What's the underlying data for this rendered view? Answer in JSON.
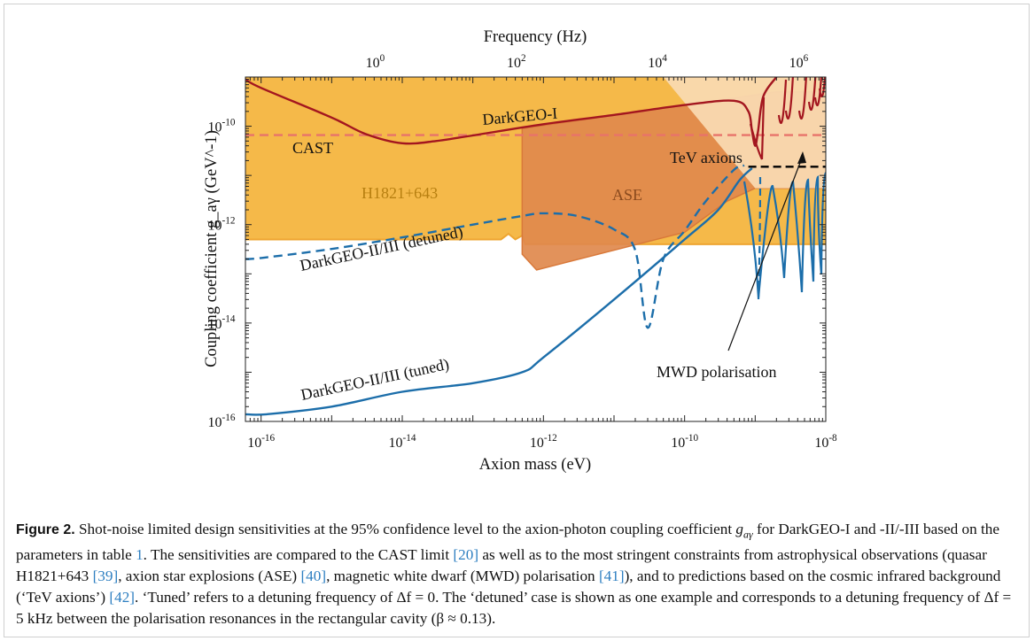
{
  "chart_data": {
    "type": "line",
    "x_axis": {
      "label": "Axion mass (eV)",
      "scale": "log",
      "range": [
        6e-17,
        1e-08
      ],
      "ticks": [
        "10^-16",
        "10^-14",
        "10^-12",
        "10^-10",
        "10^-8"
      ]
    },
    "x2_axis": {
      "label": "Frequency (Hz)",
      "scale": "log",
      "ticks": [
        "10^0",
        "10^2",
        "10^4",
        "10^6"
      ]
    },
    "y_axis": {
      "label": "Coupling coefficient g_aγ (GeV^-1)",
      "scale": "log",
      "range": [
        1e-16,
        1e-09
      ],
      "ticks": [
        "10^-16",
        "10^-14",
        "10^-12",
        "10^-10"
      ]
    },
    "grid": false,
    "regions": [
      {
        "name": "H1821+643",
        "color": "#f4b53f",
        "label": "H1821+643",
        "lower_boundary": [
          [
            6e-17,
            5e-13
          ],
          [
            2.5e-13,
            5e-13
          ],
          [
            3.2e-13,
            6.5e-13
          ],
          [
            4e-13,
            5e-13
          ],
          [
            5e-13,
            6e-13
          ],
          [
            5.5e-13,
            4e-13
          ],
          [
            1e-08,
            4e-13
          ]
        ],
        "upper": 1e-09
      },
      {
        "name": "ASE",
        "color": "#e0894d",
        "label": "ASE",
        "polygon": [
          [
            5e-13,
            2.5e-13
          ],
          [
            8e-13,
            1.2e-13
          ],
          [
            1e-10,
            7e-13
          ],
          [
            4e-10,
            3e-12
          ],
          [
            1e-09,
            5.5e-12
          ],
          [
            1e-08,
            5.5e-12
          ],
          [
            1e-08,
            5e-10
          ],
          [
            2e-09,
            5e-10
          ],
          [
            5e-13,
            9e-11
          ]
        ]
      },
      {
        "name": "MWD polarisation",
        "color": "#f9d9b0",
        "label": "MWD polarisation",
        "polygon": [
          [
            5e-11,
            1e-09
          ],
          [
            1e-08,
            1e-09
          ],
          [
            1e-08,
            5.5e-12
          ],
          [
            1e-09,
            5.5e-12
          ]
        ]
      }
    ],
    "series": [
      {
        "name": "CAST",
        "color": "#e8736a",
        "style": "dashed",
        "x": [
          6e-17,
          1e-08
        ],
        "y": [
          6.6e-11,
          6.6e-11
        ]
      },
      {
        "name": "TeV axions",
        "color": "#000000",
        "style": "dashed",
        "x": [
          8e-10,
          1e-08
        ],
        "y": [
          1.5e-11,
          1.5e-11
        ]
      },
      {
        "name": "DarkGEO-I",
        "color": "#a3161f",
        "style": "solid",
        "x": [
          6e-17,
          1e-16,
          1e-15,
          3e-15,
          1e-14,
          3e-14,
          1e-13,
          1e-12,
          1e-11,
          1e-10,
          5e-10,
          8e-10,
          9e-10,
          1e-09,
          1.1e-09,
          1.3e-09,
          2e-09
        ],
        "y": [
          9e-10,
          6e-10,
          1.5e-10,
          7e-11,
          4.5e-11,
          5e-11,
          6.5e-11,
          1.1e-10,
          1.7e-10,
          2.7e-10,
          3.3e-10,
          2e-10,
          8e-11,
          4e-11,
          8e-11,
          4e-10,
          1e-09
        ]
      },
      {
        "name": "DarkGEO-II/III (detuned)",
        "color": "#1c6eaa",
        "style": "dashed",
        "x": [
          6e-17,
          1e-16,
          1e-15,
          1e-14,
          1e-13,
          5e-13,
          1e-12,
          3e-12,
          1e-11,
          2e-11,
          3e-11,
          5e-11,
          1e-10,
          2e-10,
          5e-10,
          7e-10
        ],
        "y": [
          2e-13,
          2.1e-13,
          3.2e-13,
          5.5e-13,
          1e-12,
          1.5e-12,
          1.7e-12,
          1.5e-12,
          8e-13,
          3e-13,
          8e-15,
          2e-13,
          7.5e-13,
          3e-12,
          1.3e-11,
          1.6e-11
        ]
      },
      {
        "name": "DarkGEO-II/III (tuned)",
        "color": "#1c6eaa",
        "style": "solid",
        "x": [
          6e-17,
          1.2e-16,
          1e-15,
          1e-14,
          1e-13,
          5e-13,
          1e-12,
          1e-11,
          1e-10,
          3e-10,
          6e-10,
          9e-10
        ],
        "y": [
          1.4e-16,
          1.4e-16,
          2e-16,
          4e-16,
          6e-16,
          1e-15,
          2e-15,
          3e-14,
          5e-13,
          2e-12,
          8e-12,
          1.4e-11
        ]
      }
    ],
    "annotations": [
      "DarkGEO-I",
      "CAST",
      "H1821+643",
      "ASE",
      "TeV axions",
      "DarkGEO-II/III (detuned)",
      "DarkGEO-II/III (tuned)",
      "MWD polarisation"
    ]
  },
  "caption": {
    "fig_label": "Figure 2.",
    "text_1": " Shot-noise limited design sensitivities at the 95% confidence level to the axion-photon coupling coefficient ",
    "symbol": "g",
    "symbol_sub": "aγ",
    "text_2": " for DarkGEO-I and -II/-III based on the parameters in table ",
    "ref_table": "1",
    "text_3": ". The sensitivities are compared to the CAST limit ",
    "ref_cast": "[20]",
    "text_4": " as well as to the most stringent constraints from astrophysical observations (quasar H1821+643 ",
    "ref_h1821": "[39]",
    "text_5": ", axion star explosions (ASE) ",
    "ref_ase": "[40]",
    "text_6": ", magnetic white dwarf (MWD) polarisation ",
    "ref_mwd": "[41]",
    "text_7": "), and to predictions based on the cosmic infrared background (‘TeV axions’) ",
    "ref_tev": "[42]",
    "text_8": ". ‘Tuned’ refers to a detuning frequency of Δf = 0. The ‘detuned’ case is shown as one example and corresponds to a detuning frequency of Δf = 5 kHz between the polarisation resonances in the rectangular cavity (β ≈ 0.13)."
  }
}
